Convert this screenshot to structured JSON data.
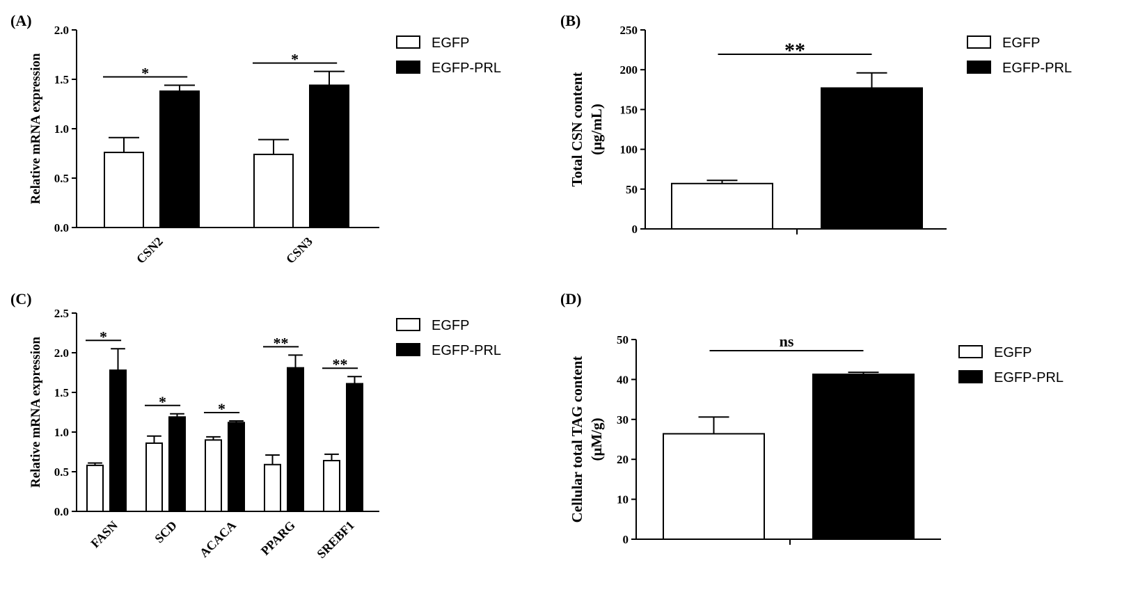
{
  "colors": {
    "egfp": "#ffffff",
    "egfp_prl": "#000000",
    "stroke": "#000000"
  },
  "chart_data": [
    {
      "panel": "(A)",
      "type": "bar",
      "ylabel": "Relative mRNA expression",
      "ylim": [
        0,
        2.0
      ],
      "yticks": [
        "0.0",
        "0.5",
        "1.0",
        "1.5",
        "2.0"
      ],
      "categories": [
        "CSN2",
        "CSN3"
      ],
      "series": [
        {
          "name": "EGFP",
          "values": [
            0.76,
            0.74
          ],
          "errors": [
            0.15,
            0.15
          ]
        },
        {
          "name": "EGFP-PRL",
          "values": [
            1.38,
            1.44
          ],
          "errors": [
            0.06,
            0.14
          ]
        }
      ],
      "significance": [
        "*",
        "*"
      ],
      "legend": [
        "EGFP",
        "EGFP-PRL"
      ]
    },
    {
      "panel": "(B)",
      "type": "bar",
      "ylabel_lines": [
        "Total CSN content",
        "(μg/mL)"
      ],
      "ylim": [
        0,
        250
      ],
      "yticks": [
        "0",
        "50",
        "100",
        "150",
        "200",
        "250"
      ],
      "categories": [
        ""
      ],
      "series": [
        {
          "name": "EGFP",
          "values": [
            57
          ],
          "errors": [
            4
          ]
        },
        {
          "name": "EGFP-PRL",
          "values": [
            177
          ],
          "errors": [
            19
          ]
        }
      ],
      "significance": [
        "**"
      ],
      "legend": [
        "EGFP",
        "EGFP-PRL"
      ]
    },
    {
      "panel": "(C)",
      "type": "bar",
      "ylabel": "Relative mRNA expression",
      "ylim": [
        0,
        2.5
      ],
      "yticks": [
        "0.0",
        "0.5",
        "1.0",
        "1.5",
        "2.0",
        "2.5"
      ],
      "categories": [
        "FASN",
        "SCD",
        "ACACA",
        "PPARG",
        "SREBF1"
      ],
      "series": [
        {
          "name": "EGFP",
          "values": [
            0.58,
            0.86,
            0.9,
            0.59,
            0.64
          ],
          "errors": [
            0.03,
            0.09,
            0.04,
            0.12,
            0.08
          ]
        },
        {
          "name": "EGFP-PRL",
          "values": [
            1.78,
            1.19,
            1.12,
            1.81,
            1.61
          ],
          "errors": [
            0.27,
            0.04,
            0.02,
            0.16,
            0.09
          ]
        }
      ],
      "significance": [
        "*",
        "*",
        "*",
        "**",
        "**"
      ],
      "legend": [
        "EGFP",
        "EGFP-PRL"
      ]
    },
    {
      "panel": "(D)",
      "type": "bar",
      "ylabel_lines": [
        "Cellular total TAG content",
        "(μM/g)"
      ],
      "ylim": [
        0,
        50
      ],
      "yticks": [
        "0",
        "10",
        "20",
        "30",
        "40",
        "50"
      ],
      "categories": [
        ""
      ],
      "series": [
        {
          "name": "EGFP",
          "values": [
            26.4
          ],
          "errors": [
            4.2
          ]
        },
        {
          "name": "EGFP-PRL",
          "values": [
            41.3
          ],
          "errors": [
            0.5
          ]
        }
      ],
      "significance": [
        "ns"
      ],
      "legend": [
        "EGFP",
        "EGFP-PRL"
      ]
    }
  ]
}
